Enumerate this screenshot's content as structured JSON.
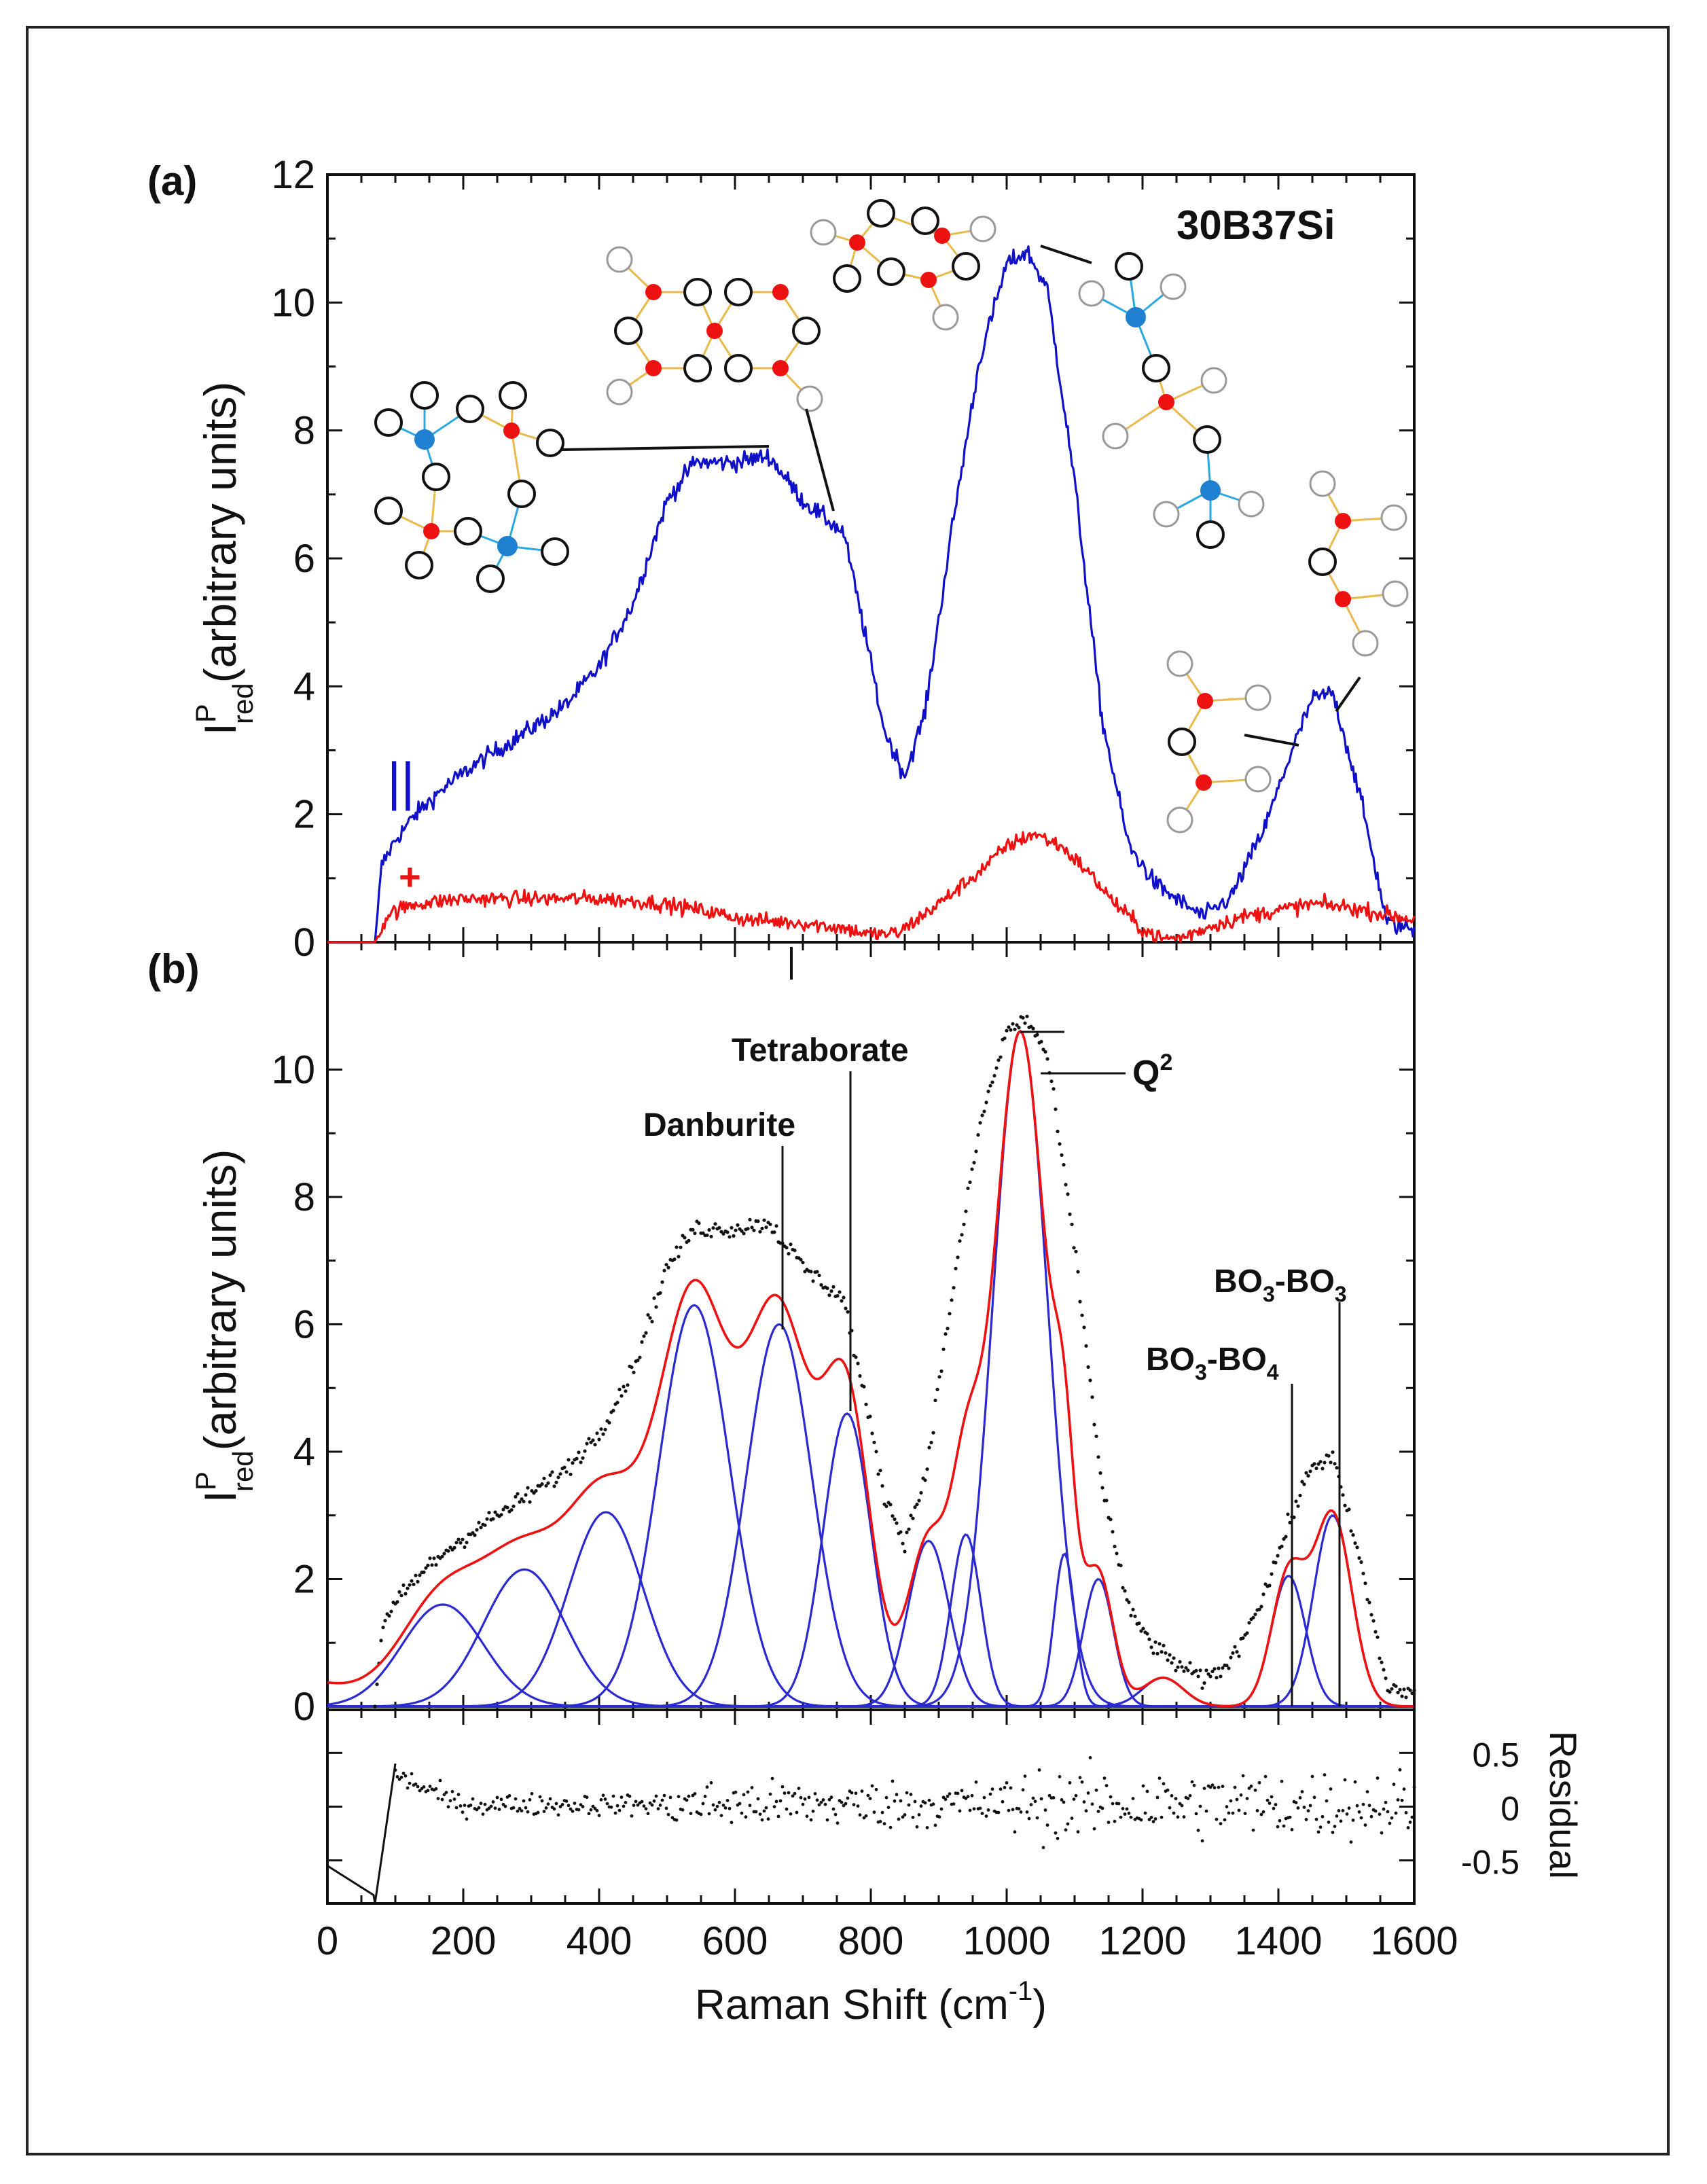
{
  "figure": {
    "colors": {
      "parallel": "#1010c8",
      "perpendicular": "#ee1111",
      "fit": "#ee1111",
      "data": "#111111",
      "component": "#2a2ad0",
      "boron_atom": "#1f7fd1",
      "silicon_or_tri_atom": "#ee1111",
      "bond": "#e9b94a",
      "bond_tet": "#2aa8e0"
    }
  },
  "chart_data": [
    {
      "panel_label": "(a)",
      "type": "line",
      "sample_label": "30B37Si",
      "xlabel": "",
      "ylabel_main": "I",
      "ylabel_sup": "P",
      "ylabel_sub": "red",
      "ylabel_rest": "(arbitrary units)",
      "xlim": [
        0,
        1600
      ],
      "ylim": [
        0,
        12
      ],
      "yticks": [
        0,
        2,
        4,
        6,
        8,
        10,
        12
      ],
      "xticks": [
        0,
        200,
        400,
        600,
        800,
        1000,
        1200,
        1400,
        1600
      ],
      "parallel_marker": "||",
      "perpendicular_marker": "+",
      "series": [
        {
          "name": "parallel",
          "x": [
            0,
            70,
            80,
            100,
            130,
            170,
            220,
            280,
            350,
            400,
            450,
            500,
            540,
            600,
            650,
            700,
            760,
            790,
            820,
            850,
            880,
            920,
            960,
            1000,
            1030,
            1060,
            1100,
            1140,
            1180,
            1220,
            1260,
            1290,
            1330,
            1380,
            1420,
            1450,
            1480,
            1520,
            1560,
            1600
          ],
          "y": [
            0,
            0,
            1.2,
            1.6,
            2.0,
            2.4,
            2.8,
            3.2,
            3.7,
            4.3,
            5.3,
            6.9,
            7.5,
            7.5,
            7.6,
            6.9,
            6.4,
            4.9,
            3.3,
            2.6,
            3.6,
            6.5,
            9.1,
            10.6,
            10.8,
            10.2,
            7.2,
            3.5,
            1.5,
            0.9,
            0.6,
            0.4,
            0.7,
            1.8,
            3.0,
            3.8,
            3.9,
            2.3,
            0.3,
            0.2
          ]
        },
        {
          "name": "perpendicular",
          "x": [
            0,
            70,
            90,
            130,
            200,
            300,
            400,
            480,
            550,
            620,
            700,
            760,
            800,
            840,
            900,
            960,
            1000,
            1040,
            1080,
            1120,
            1160,
            1200,
            1230,
            1260,
            1300,
            1350,
            1400,
            1450,
            1500,
            1550,
            1600
          ],
          "y": [
            0,
            0,
            0.45,
            0.6,
            0.68,
            0.68,
            0.68,
            0.62,
            0.5,
            0.35,
            0.3,
            0.22,
            0.12,
            0.14,
            0.6,
            1.1,
            1.5,
            1.7,
            1.5,
            1.1,
            0.6,
            0.2,
            0.05,
            0.08,
            0.25,
            0.4,
            0.5,
            0.6,
            0.55,
            0.45,
            0.35
          ]
        }
      ]
    },
    {
      "panel_label": "(b)",
      "type": "line",
      "xlabel_main": "Raman Shift (cm",
      "xlabel_sup": "-1",
      "xlabel_end": ")",
      "ylabel_main": "I",
      "ylabel_sup": "P",
      "ylabel_sub": "red",
      "ylabel_rest": "(arbitrary units)",
      "xlim": [
        0,
        1600
      ],
      "ylim": [
        0,
        12
      ],
      "yticks": [
        0,
        2,
        4,
        6,
        8,
        10
      ],
      "xticks": [
        0,
        200,
        400,
        600,
        800,
        1000,
        1200,
        1400,
        1600
      ],
      "components": [
        {
          "center": 170,
          "height": 1.6,
          "width": 60
        },
        {
          "center": 290,
          "height": 2.15,
          "width": 60
        },
        {
          "center": 410,
          "height": 3.05,
          "width": 55
        },
        {
          "center": 540,
          "height": 6.3,
          "width": 52
        },
        {
          "center": 665,
          "height": 6.0,
          "width": 48
        },
        {
          "center": 765,
          "height": 4.6,
          "width": 35
        },
        {
          "center": 885,
          "height": 2.6,
          "width": 30
        },
        {
          "center": 940,
          "height": 2.7,
          "width": 22
        },
        {
          "center": 1020,
          "height": 10.6,
          "width": 40
        },
        {
          "center": 1085,
          "height": 2.4,
          "width": 15
        },
        {
          "center": 1135,
          "height": 2.0,
          "width": 22
        },
        {
          "center": 1230,
          "height": 0.45,
          "width": 30
        },
        {
          "center": 1415,
          "height": 2.05,
          "width": 25
        },
        {
          "center": 1480,
          "height": 3.0,
          "width": 28
        }
      ],
      "peak_labels": [
        {
          "text": "Danburite",
          "x": 665
        },
        {
          "text": "Tetraborate",
          "x": 765
        },
        {
          "text_main": "Q",
          "text_sup": "2",
          "x": 1030
        },
        {
          "text_main": "BO",
          "sub1": "3",
          "text_mid": "-BO",
          "sub2": "4",
          "x": 1415
        },
        {
          "text_main": "BO",
          "sub1": "3",
          "text_mid": "-BO",
          "sub2": "3",
          "x": 1480
        }
      ]
    },
    {
      "panel_label": "",
      "type": "scatter",
      "ylabel": "Residual",
      "xlim": [
        0,
        1600
      ],
      "ylim": [
        -0.9,
        0.9
      ],
      "yticks": [
        -0.5,
        0,
        0.5
      ],
      "ytick_labels": [
        "-0.5",
        "0",
        "0.5"
      ],
      "xtick_labels": [
        "0",
        "200",
        "400",
        "600",
        "800",
        "1000",
        "1200",
        "1400",
        "1600"
      ]
    }
  ]
}
